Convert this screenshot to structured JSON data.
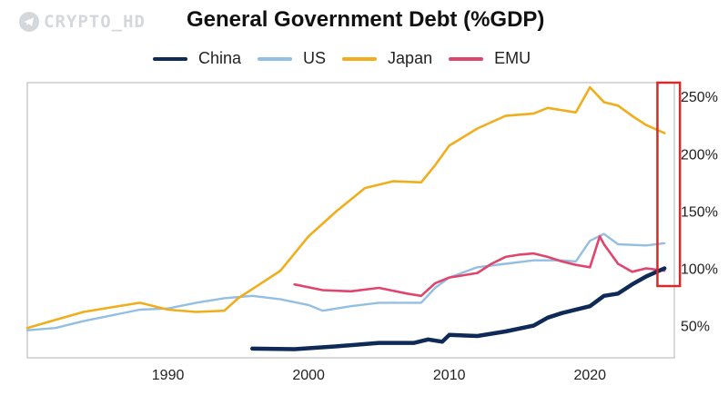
{
  "watermark": "CRYPTO_HD",
  "colors": {
    "China": "#0e2a57",
    "US": "#93bfe3",
    "Japan": "#f0ae1c",
    "EMU": "#e0456e",
    "highlight": "#d42a2a",
    "frame": "#bfbfbf"
  },
  "chart_data": {
    "type": "line",
    "title": "General Government Debt (%GDP)",
    "xlabel": "",
    "ylabel": "",
    "xlim": [
      1980,
      2026
    ],
    "ylim": [
      22,
      262
    ],
    "x_ticks": [
      1990,
      2000,
      2010,
      2020
    ],
    "y_ticks": [
      50,
      100,
      150,
      200,
      250
    ],
    "y_tick_labels": [
      "50%",
      "100%",
      "150%",
      "200%",
      "250%"
    ],
    "legend_placement": "top",
    "highlight_x_range": [
      2024.8,
      2026.4
    ],
    "series": [
      {
        "name": "China",
        "color": "#0e2a57",
        "x": [
          1996,
          1999,
          2002,
          2005,
          2007.5,
          2008.5,
          2009.5,
          2010,
          2012,
          2014,
          2016,
          2017,
          2018,
          2020,
          2021,
          2022,
          2023,
          2024,
          2025.3
        ],
        "y": [
          30,
          29.5,
          32,
          35,
          35,
          38,
          36,
          42,
          41,
          45,
          50,
          57,
          61,
          67,
          76,
          78,
          86,
          93,
          100
        ]
      },
      {
        "name": "US",
        "color": "#93bfe3",
        "x": [
          1980,
          1982,
          1984,
          1986,
          1988,
          1990,
          1992,
          1994,
          1996,
          1998,
          2000,
          2001,
          2003,
          2005,
          2007,
          2008,
          2009,
          2010,
          2012,
          2014,
          2016,
          2018,
          2019,
          2020,
          2021,
          2022,
          2024,
          2025.3
        ],
        "y": [
          46,
          48,
          54,
          59,
          64,
          65,
          70,
          74,
          76,
          73,
          68,
          63,
          67,
          70,
          70,
          70,
          83,
          92,
          101,
          104,
          107,
          107,
          106,
          124,
          130,
          121,
          120,
          122
        ]
      },
      {
        "name": "Japan",
        "color": "#f0ae1c",
        "x": [
          1980,
          1982,
          1984,
          1986,
          1988,
          1990,
          1992,
          1994,
          1995,
          1996,
          1998,
          2000,
          2002,
          2004,
          2006,
          2008,
          2009,
          2010,
          2012,
          2014,
          2016,
          2017,
          2019,
          2020,
          2021,
          2022,
          2023,
          2024,
          2025.3
        ],
        "y": [
          48,
          55,
          62,
          66,
          70,
          64,
          62,
          63,
          74,
          82,
          98,
          128,
          150,
          170,
          176,
          175,
          190,
          207,
          222,
          233,
          235,
          240,
          236,
          258,
          245,
          242,
          233,
          225,
          218
        ]
      },
      {
        "name": "EMU",
        "color": "#e0456e",
        "x": [
          1999,
          2001,
          2003,
          2005,
          2007,
          2008,
          2009,
          2010,
          2011,
          2012,
          2013,
          2014,
          2015,
          2016,
          2017,
          2018,
          2019,
          2020,
          2020.7,
          2021,
          2022,
          2023,
          2024,
          2025.3
        ],
        "y": [
          86,
          81,
          80,
          83,
          78,
          76,
          87,
          92,
          94,
          96,
          104,
          110,
          112,
          113,
          110,
          106,
          103,
          101,
          128,
          121,
          104,
          97,
          100,
          98
        ]
      }
    ]
  }
}
